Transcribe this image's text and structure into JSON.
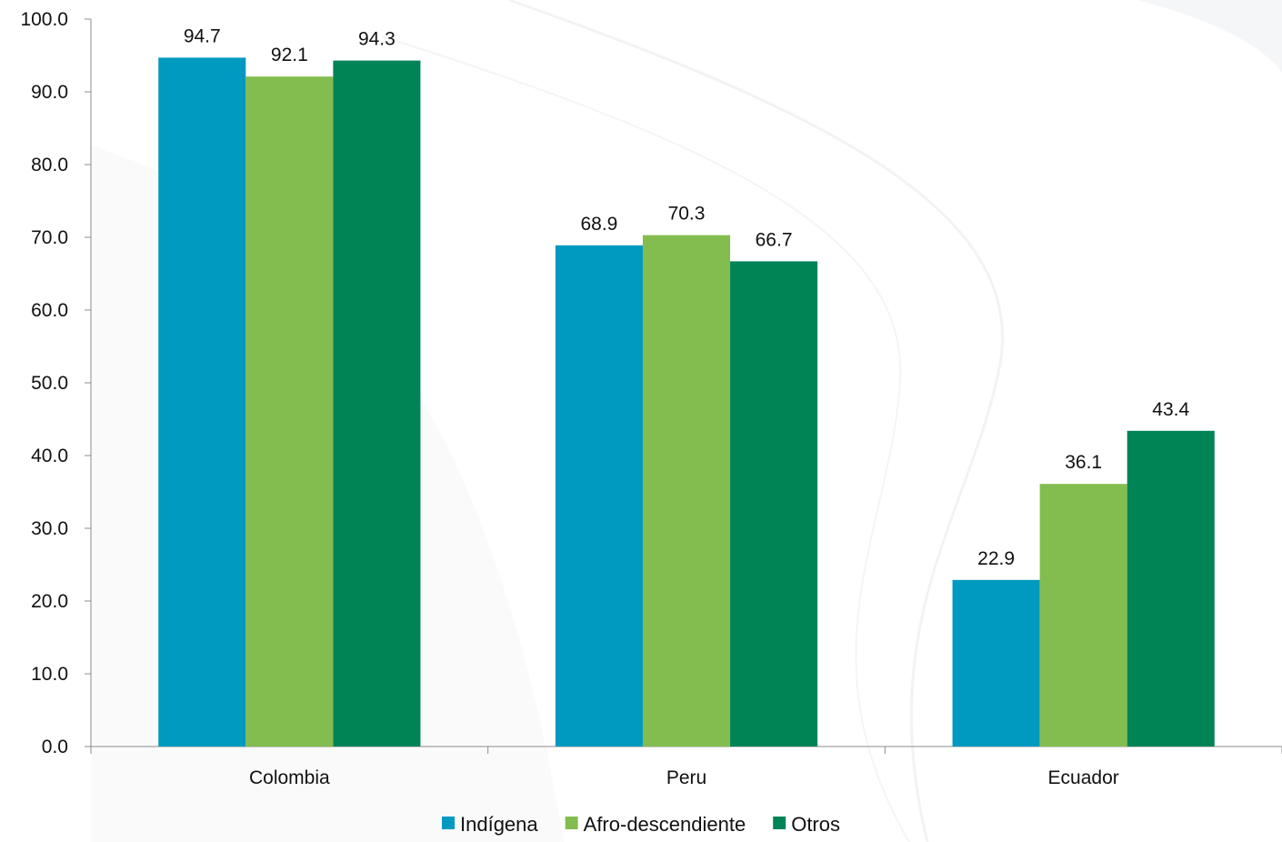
{
  "chart_data": {
    "type": "bar",
    "categories": [
      "Colombia",
      "Peru",
      "Ecuador"
    ],
    "series": [
      {
        "name": "Indígena",
        "color": "#0099c0",
        "values": [
          94.7,
          68.9,
          22.9
        ]
      },
      {
        "name": "Afro-descendiente",
        "color": "#84bd4f",
        "values": [
          92.1,
          70.3,
          36.1
        ]
      },
      {
        "name": "Otros",
        "color": "#008456",
        "values": [
          94.3,
          66.7,
          43.4
        ]
      }
    ],
    "ylim": [
      0,
      100
    ],
    "yticks": [
      "0.0",
      "10.0",
      "20.0",
      "30.0",
      "40.0",
      "50.0",
      "60.0",
      "70.0",
      "80.0",
      "90.0",
      "100.0"
    ],
    "grid": false,
    "legend_position": "bottom",
    "title": "",
    "xlabel": "",
    "ylabel": ""
  }
}
